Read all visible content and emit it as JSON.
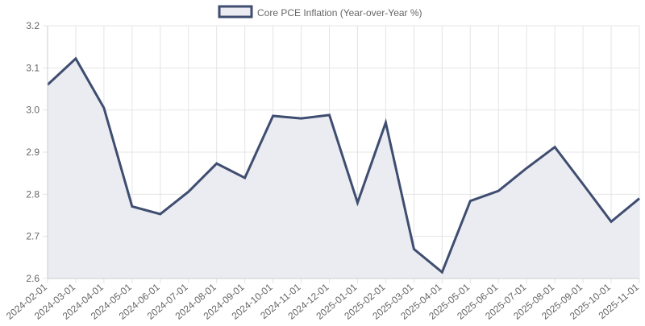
{
  "chart_data": {
    "type": "area",
    "title": "",
    "xlabel": "",
    "ylabel": "",
    "x": [
      "2024-02-01",
      "2024-03-01",
      "2024-04-01",
      "2024-05-01",
      "2024-06-01",
      "2024-07-01",
      "2024-08-01",
      "2024-09-01",
      "2024-10-01",
      "2024-11-01",
      "2024-12-01",
      "2025-01-01",
      "2025-02-01",
      "2025-03-01",
      "2025-04-01",
      "2025-05-01",
      "2025-06-01",
      "2025-07-01",
      "2025-08-01",
      "2025-09-01",
      "2025-10-01",
      "2025-11-01"
    ],
    "series": [
      {
        "name": "Core PCE Inflation (Year-over-Year %)",
        "values": [
          3.06,
          3.122,
          3.005,
          2.771,
          2.753,
          2.806,
          2.873,
          2.839,
          2.986,
          2.98,
          2.988,
          2.78,
          2.97,
          2.67,
          2.615,
          2.784,
          2.808,
          2.862,
          2.912,
          2.824,
          2.735,
          2.79
        ]
      }
    ],
    "yticks": [
      "2.6",
      "2.7",
      "2.8",
      "2.9",
      "3.0",
      "3.1",
      "3.2"
    ],
    "ylim": [
      2.6,
      3.2
    ],
    "grid": true,
    "legend_position": "top-center",
    "colors": {
      "line": "#3f4d70",
      "fill": "#ebecf1",
      "grid": "#e4e4e4",
      "axis": "#cccccc",
      "text": "#666666"
    }
  }
}
